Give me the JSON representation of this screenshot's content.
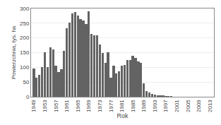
{
  "chart_data": {
    "type": "bar",
    "x": [
      1949,
      1950,
      1951,
      1952,
      1953,
      1954,
      1955,
      1956,
      1957,
      1958,
      1959,
      1960,
      1961,
      1962,
      1963,
      1964,
      1965,
      1966,
      1967,
      1968,
      1969,
      1970,
      1971,
      1972,
      1973,
      1974,
      1975,
      1976,
      1977,
      1978,
      1979,
      1980,
      1981,
      1982,
      1983,
      1984,
      1985,
      1986,
      1987,
      1988,
      1989,
      1990,
      1991,
      1992,
      1993,
      1994,
      1995,
      1996,
      1997,
      1998,
      1999,
      2000,
      2001,
      2002,
      2003,
      2004,
      2005,
      2006,
      2007,
      2008,
      2009,
      2010,
      2011,
      2012,
      2013
    ],
    "values": [
      97,
      65,
      75,
      100,
      152,
      100,
      168,
      160,
      105,
      85,
      93,
      155,
      232,
      253,
      283,
      287,
      275,
      265,
      260,
      247,
      290,
      213,
      210,
      208,
      178,
      150,
      115,
      152,
      65,
      105,
      80,
      86,
      105,
      108,
      125,
      125,
      140,
      133,
      120,
      115,
      45,
      20,
      14,
      10,
      7,
      5,
      5,
      4,
      3,
      2,
      2,
      1,
      1,
      1,
      1,
      1,
      1,
      1,
      0,
      0,
      0,
      0,
      0,
      0,
      0
    ],
    "color": "#636363",
    "xlabel": "Rok",
    "ylabel": "Powierzchnia, tys. ha",
    "xlim": [
      1948,
      2014.5
    ],
    "xticks": [
      1949,
      1953,
      1957,
      1961,
      1965,
      1969,
      1973,
      1977,
      1981,
      1985,
      1989,
      1993,
      1997,
      2001,
      2005,
      2009,
      2013
    ],
    "ylim": [
      0,
      300
    ],
    "yticks": [
      0,
      50,
      100,
      150,
      200,
      250,
      300
    ],
    "grid": true
  }
}
